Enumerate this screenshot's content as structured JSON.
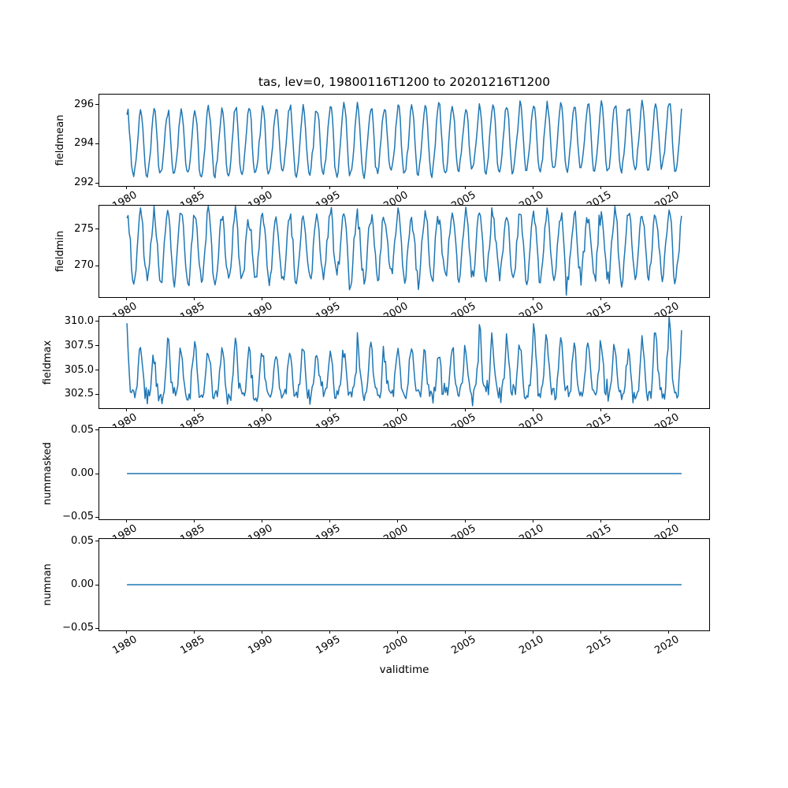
{
  "figure": {
    "title": "tas, lev=0, 19800116T1200 to 20201216T1200",
    "background_color": "#ffffff",
    "line_color": "#1f77b4",
    "frame_color": "#000000"
  },
  "chart_data": {
    "type": "line",
    "title": "tas, lev=0, 19800116T1200 to 20201216T1200",
    "xlabel": "validtime",
    "x_axis": {
      "xlim": [
        1978.0,
        2023.0
      ],
      "tick_values": [
        1980,
        1985,
        1990,
        1995,
        2000,
        2005,
        2010,
        2015,
        2020
      ],
      "tick_labels": [
        "1980",
        "1985",
        "1990",
        "1995",
        "2000",
        "2005",
        "2010",
        "2015",
        "2020"
      ],
      "tick_rotation_deg": 30,
      "time_start": 1980.0417,
      "time_step": 0.083333,
      "n_points": 492,
      "grid": false
    },
    "subplots": [
      {
        "ylabel": "fieldmean",
        "ylim": [
          291.84,
          296.51
        ],
        "yticks": [
          {
            "label": "292",
            "value": 292
          },
          {
            "label": "294",
            "value": 294
          },
          {
            "label": "296",
            "value": 296
          }
        ],
        "series": {
          "name": "fieldmean",
          "gen": "seasonal-cos",
          "seed": 11,
          "base": 293.95,
          "trend": 0.35,
          "amplitude": 1.72,
          "amp_jitter": 0.05,
          "harm2": 0.16,
          "harm2_phase": -1.1,
          "noise": 0.11,
          "typical_peak": 295.9,
          "typical_trough": 292.3
        }
      },
      {
        "ylabel": "fieldmin",
        "ylim": [
          265.74,
          278.17
        ],
        "yticks": [
          {
            "label": "270",
            "value": 270
          },
          {
            "label": "275",
            "value": 275
          }
        ],
        "series": {
          "name": "fieldmin",
          "gen": "seasonal-cos",
          "seed": 23,
          "base": 272.4,
          "trend": 0.25,
          "amplitude": 4.5,
          "amp_jitter": 0.06,
          "harm2": 0.0,
          "harm2_phase": 0,
          "noise": 0.6,
          "dip_years": [
            1996,
            2012
          ],
          "dip_amount": 1.5,
          "typical_peak": 277.0,
          "typical_trough": 267.8
        }
      },
      {
        "ylabel": "fieldmax",
        "ylim": [
          301.07,
          310.48
        ],
        "yticks": [
          {
            "label": "302.5",
            "value": 302.5
          },
          {
            "label": "305.0",
            "value": 305.0
          },
          {
            "label": "307.5",
            "value": 307.5
          },
          {
            "label": "310.0",
            "value": 310.0
          }
        ],
        "series": {
          "name": "fieldmax",
          "gen": "seasonal-spike",
          "seed": 37,
          "base": 302.35,
          "trend": 0.25,
          "amplitude": 5.15,
          "amp_jitter": 0.16,
          "shape_pow": 2.2,
          "noise": 0.48,
          "boost_years": [
            2006,
            2008,
            2010,
            2019,
            2020
          ],
          "boost": 1.25,
          "typical_peak": 307.5,
          "typical_trough": 302.2
        }
      },
      {
        "ylabel": "nummasked",
        "ylim": [
          -0.0524,
          0.0524
        ],
        "yticks": [
          {
            "label": "−0.05",
            "value": -0.05
          },
          {
            "label": "0.00",
            "value": 0.0
          },
          {
            "label": "0.05",
            "value": 0.05
          }
        ],
        "series": {
          "name": "nummasked",
          "gen": "constant",
          "value": 0.0
        }
      },
      {
        "ylabel": "numnan",
        "ylim": [
          -0.0524,
          0.0524
        ],
        "yticks": [
          {
            "label": "−0.05",
            "value": -0.05
          },
          {
            "label": "0.00",
            "value": 0.0
          },
          {
            "label": "0.05",
            "value": 0.05
          }
        ],
        "series": {
          "name": "numnan",
          "gen": "constant",
          "value": 0.0
        }
      }
    ]
  }
}
